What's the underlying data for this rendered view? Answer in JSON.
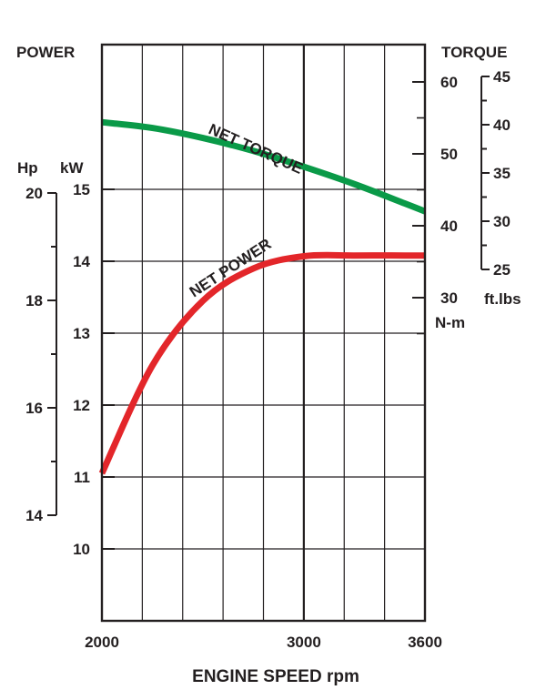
{
  "chart_data": {
    "type": "line",
    "x": [
      2000,
      2250,
      2500,
      2750,
      3000,
      3250,
      3500,
      3600
    ],
    "xlabel": "ENGINE SPEED rpm",
    "x_ticks": [
      "2000",
      "3000",
      "3600"
    ],
    "xlim": [
      2000,
      3600
    ],
    "left_axis_title": "POWER",
    "left_units": {
      "kw": "kW",
      "hp": "Hp"
    },
    "kw_ticks": [
      "15",
      "14",
      "13",
      "12",
      "11",
      "10"
    ],
    "kw_range": [
      9,
      16
    ],
    "hp_ticks": [
      "20",
      "18",
      "16",
      "14"
    ],
    "right_axis_title": "TORQUE",
    "right_units": {
      "nm": "N-m",
      "ftlbs": "ft.lbs"
    },
    "nm_ticks": [
      "60",
      "50",
      "40",
      "30"
    ],
    "ftlbs_ticks": [
      "45",
      "40",
      "35",
      "30",
      "25"
    ],
    "grid": true,
    "series": [
      {
        "name": "NET TORQUE",
        "axis": "right",
        "unit": "N-m",
        "color": "#0a9a48",
        "values": [
          54.4,
          53.6,
          52.2,
          50.4,
          48.2,
          45.8,
          43.1,
          42.0
        ]
      },
      {
        "name": "NET POWER",
        "axis": "left",
        "unit": "kW",
        "color": "#e3262a",
        "values": [
          11.05,
          12.55,
          13.45,
          13.9,
          14.07,
          14.08,
          14.08,
          14.08
        ]
      }
    ]
  }
}
